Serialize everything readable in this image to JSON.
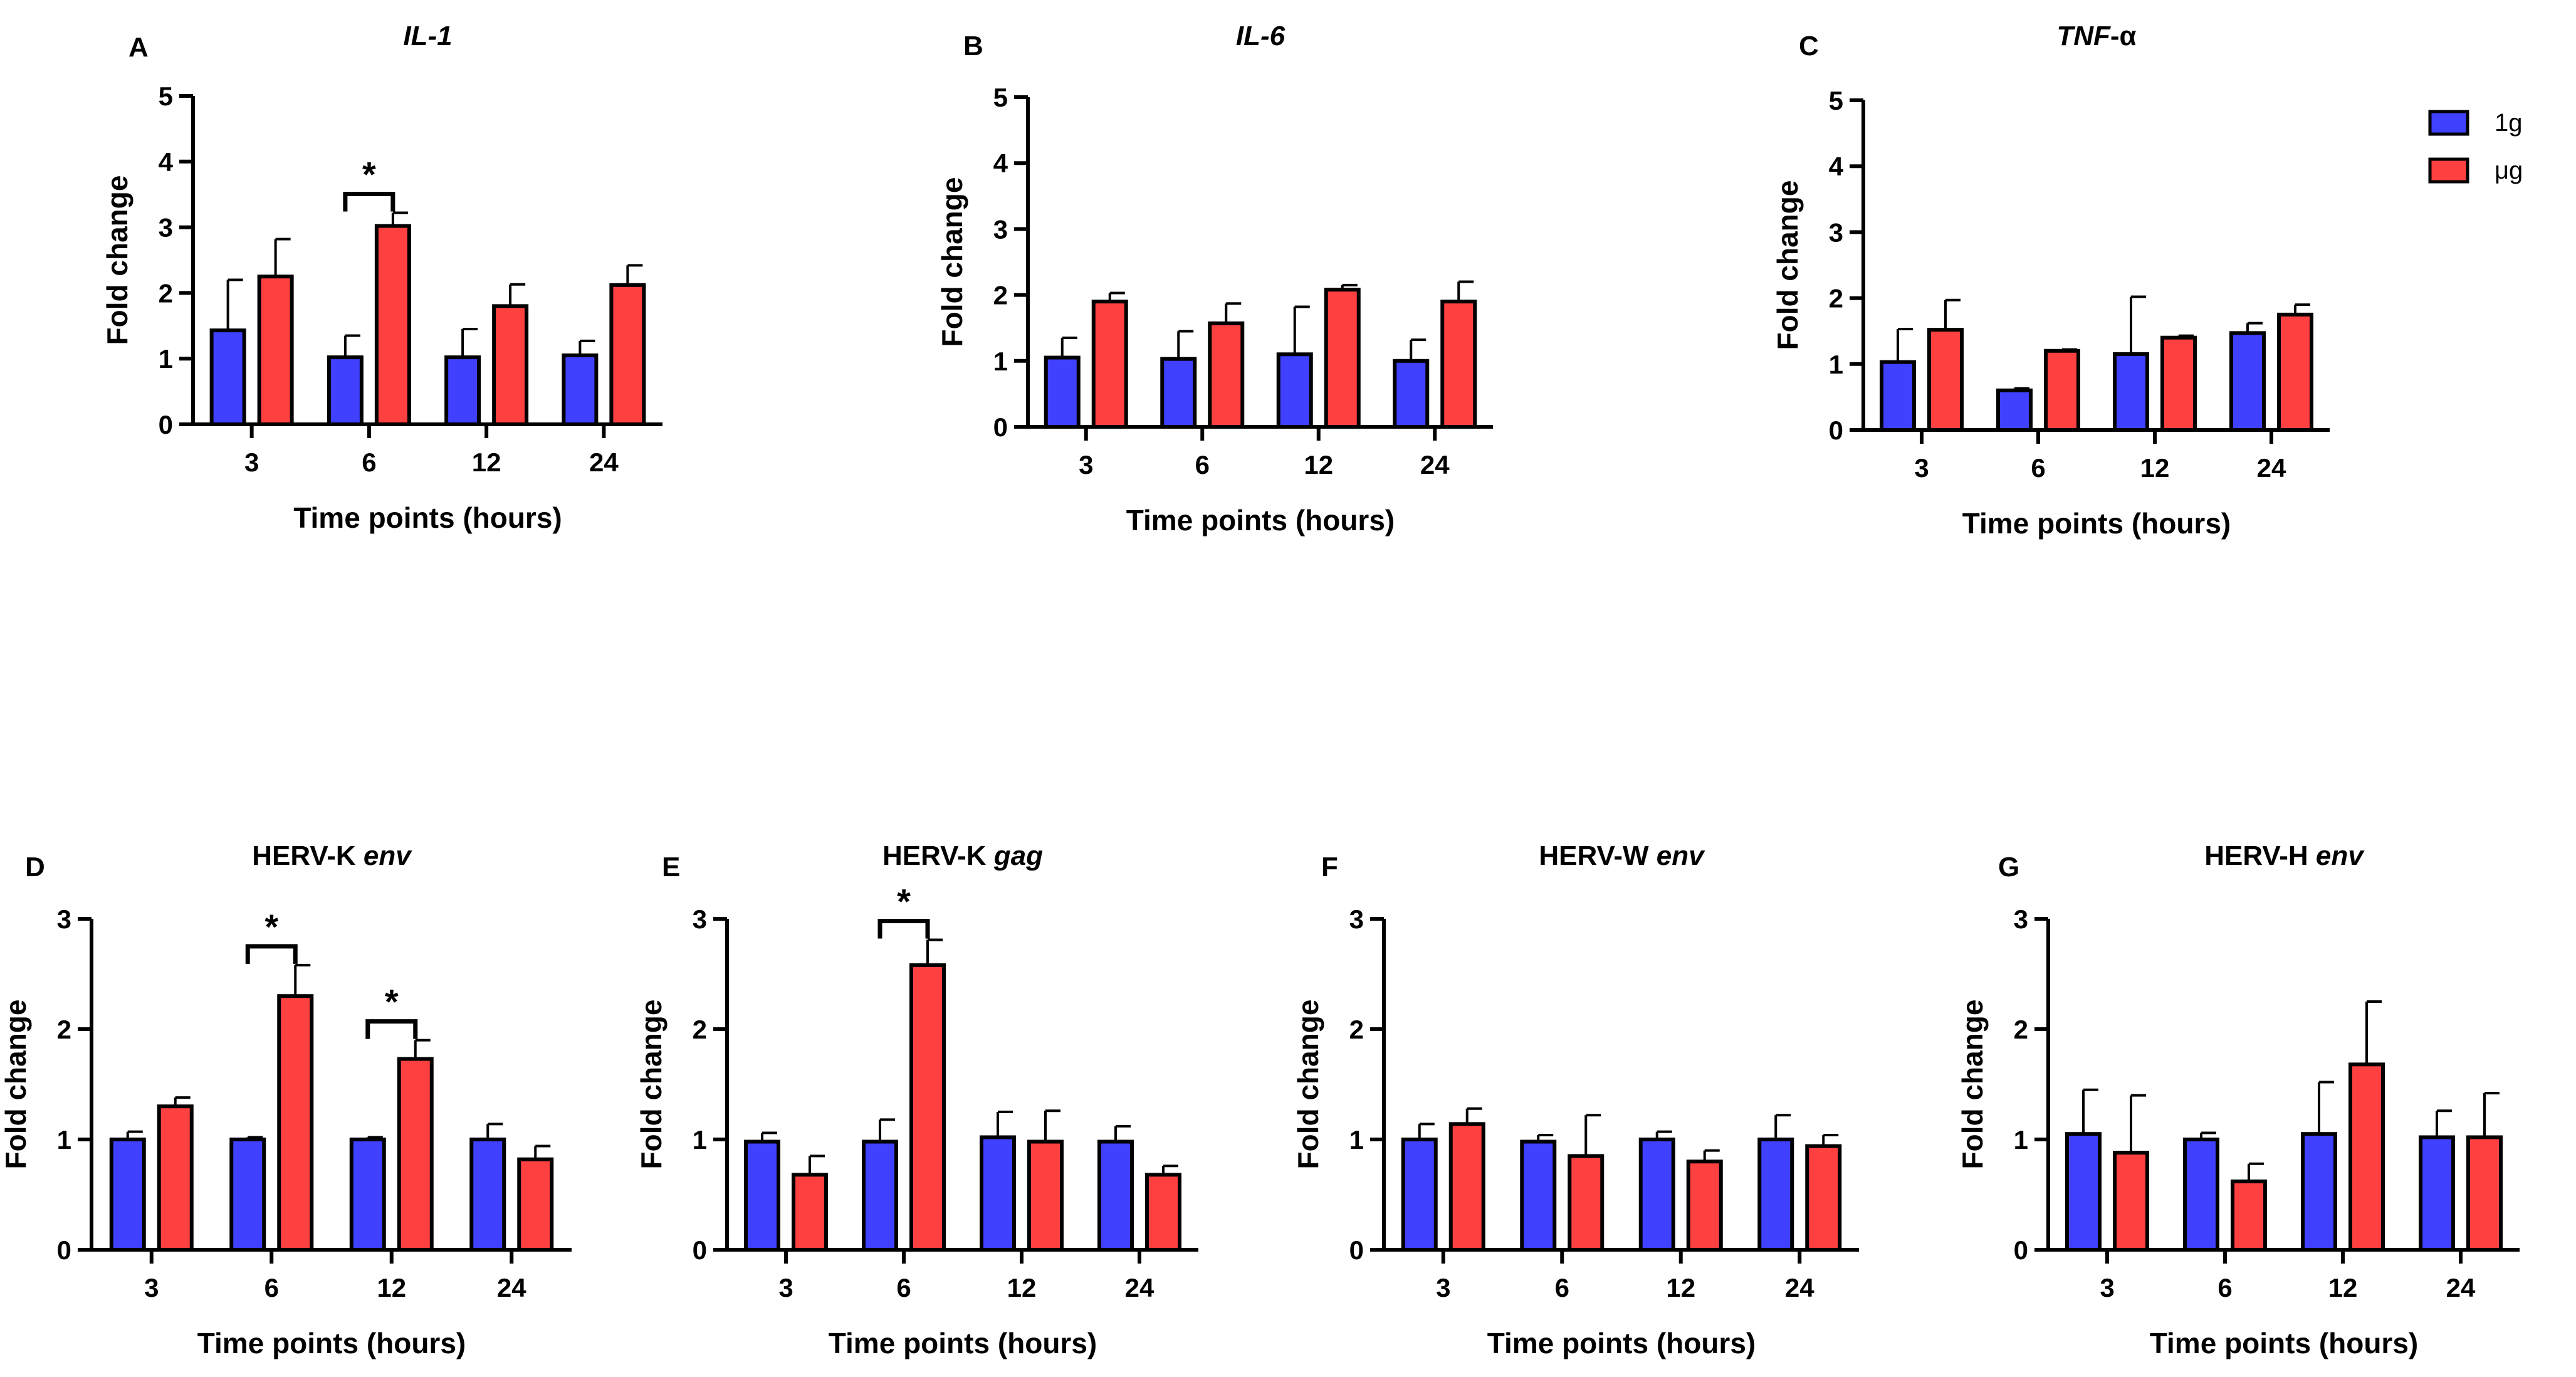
{
  "colors": {
    "series_1g": "#4040ff",
    "series_ug": "#ff4040",
    "axis": "#000000"
  },
  "legend": {
    "items": [
      {
        "label": "1g",
        "color": "#4040ff"
      },
      {
        "label": "μg",
        "color": "#ff4040"
      }
    ]
  },
  "chart_data": [
    {
      "id": "A",
      "panel": "A",
      "type": "bar",
      "title_parts": [
        {
          "text": "IL-1",
          "italic": true
        }
      ],
      "xlabel": "Time points (hours)",
      "ylabel": "Fold change",
      "ylim": [
        0,
        5
      ],
      "yticks": [
        "0",
        "1",
        "2",
        "3",
        "4",
        "5"
      ],
      "categories": [
        "3",
        "6",
        "12",
        "24"
      ],
      "series": [
        {
          "name": "1g",
          "values": [
            1.43,
            1.02,
            1.02,
            1.05
          ],
          "errors": [
            0.77,
            0.33,
            0.43,
            0.22
          ]
        },
        {
          "name": "μg",
          "values": [
            2.25,
            3.02,
            1.8,
            2.12
          ],
          "errors": [
            0.57,
            0.2,
            0.33,
            0.3
          ]
        }
      ],
      "significance": [
        {
          "category_index": 1,
          "label": "*"
        }
      ]
    },
    {
      "id": "B",
      "panel": "B",
      "type": "bar",
      "title_parts": [
        {
          "text": "IL-6",
          "italic": true
        }
      ],
      "xlabel": "Time points (hours)",
      "ylabel": "Fold change",
      "ylim": [
        0,
        5
      ],
      "yticks": [
        "0",
        "1",
        "2",
        "3",
        "4",
        "5"
      ],
      "categories": [
        "3",
        "6",
        "12",
        "24"
      ],
      "series": [
        {
          "name": "1g",
          "values": [
            1.05,
            1.03,
            1.1,
            1.0
          ],
          "errors": [
            0.3,
            0.42,
            0.72,
            0.32
          ]
        },
        {
          "name": "μg",
          "values": [
            1.9,
            1.57,
            2.08,
            1.9
          ],
          "errors": [
            0.13,
            0.3,
            0.07,
            0.3
          ]
        }
      ],
      "significance": []
    },
    {
      "id": "C",
      "panel": "C",
      "type": "bar",
      "title_parts": [
        {
          "text": "TNF",
          "italic": true
        },
        {
          "text": "-α",
          "italic": false
        }
      ],
      "xlabel": "Time points (hours)",
      "ylabel": "Fold change",
      "ylim": [
        0,
        5
      ],
      "yticks": [
        "0",
        "1",
        "2",
        "3",
        "4",
        "5"
      ],
      "categories": [
        "3",
        "6",
        "12",
        "24"
      ],
      "series": [
        {
          "name": "1g",
          "values": [
            1.03,
            0.6,
            1.15,
            1.47
          ],
          "errors": [
            0.5,
            0.03,
            0.87,
            0.15
          ]
        },
        {
          "name": "μg",
          "values": [
            1.52,
            1.2,
            1.4,
            1.75
          ],
          "errors": [
            0.45,
            0.02,
            0.03,
            0.15
          ]
        }
      ],
      "significance": []
    },
    {
      "id": "D",
      "panel": "D",
      "type": "bar",
      "title_parts": [
        {
          "text": "HERV-K ",
          "italic": false
        },
        {
          "text": "env",
          "italic": true
        }
      ],
      "xlabel": "Time points (hours)",
      "ylabel": "Fold change",
      "ylim": [
        0,
        3
      ],
      "yticks": [
        "0",
        "1",
        "2",
        "3"
      ],
      "categories": [
        "3",
        "6",
        "12",
        "24"
      ],
      "series": [
        {
          "name": "1g",
          "values": [
            1.0,
            1.0,
            1.0,
            1.0
          ],
          "errors": [
            0.07,
            0.02,
            0.02,
            0.14
          ]
        },
        {
          "name": "μg",
          "values": [
            1.3,
            2.3,
            1.73,
            0.82
          ],
          "errors": [
            0.08,
            0.28,
            0.17,
            0.12
          ]
        }
      ],
      "significance": [
        {
          "category_index": 1,
          "label": "*"
        },
        {
          "category_index": 2,
          "label": "*"
        }
      ]
    },
    {
      "id": "E",
      "panel": "E",
      "type": "bar",
      "title_parts": [
        {
          "text": "HERV-K ",
          "italic": false
        },
        {
          "text": "gag",
          "italic": true
        }
      ],
      "xlabel": "Time points (hours)",
      "ylabel": "Fold change",
      "ylim": [
        0,
        3
      ],
      "yticks": [
        "0",
        "1",
        "2",
        "3"
      ],
      "categories": [
        "3",
        "6",
        "12",
        "24"
      ],
      "series": [
        {
          "name": "1g",
          "values": [
            0.98,
            0.98,
            1.02,
            0.98
          ],
          "errors": [
            0.08,
            0.2,
            0.23,
            0.14
          ]
        },
        {
          "name": "μg",
          "values": [
            0.68,
            2.58,
            0.98,
            0.68
          ],
          "errors": [
            0.17,
            0.23,
            0.28,
            0.08
          ]
        }
      ],
      "significance": [
        {
          "category_index": 1,
          "label": "*"
        }
      ]
    },
    {
      "id": "F",
      "panel": "F",
      "type": "bar",
      "title_parts": [
        {
          "text": "HERV-W ",
          "italic": false
        },
        {
          "text": "env",
          "italic": true
        }
      ],
      "xlabel": "Time points (hours)",
      "ylabel": "Fold change",
      "ylim": [
        0,
        3
      ],
      "yticks": [
        "0",
        "1",
        "2",
        "3"
      ],
      "categories": [
        "3",
        "6",
        "12",
        "24"
      ],
      "series": [
        {
          "name": "1g",
          "values": [
            1.0,
            0.98,
            1.0,
            1.0
          ],
          "errors": [
            0.14,
            0.06,
            0.07,
            0.22
          ]
        },
        {
          "name": "μg",
          "values": [
            1.14,
            0.85,
            0.8,
            0.94
          ],
          "errors": [
            0.14,
            0.37,
            0.1,
            0.1
          ]
        }
      ],
      "significance": []
    },
    {
      "id": "G",
      "panel": "G",
      "type": "bar",
      "title_parts": [
        {
          "text": "HERV-H ",
          "italic": false
        },
        {
          "text": "env",
          "italic": true
        }
      ],
      "xlabel": "Time points (hours)",
      "ylabel": "Fold change",
      "ylim": [
        0,
        3
      ],
      "yticks": [
        "0",
        "1",
        "2",
        "3"
      ],
      "categories": [
        "3",
        "6",
        "12",
        "24"
      ],
      "series": [
        {
          "name": "1g",
          "values": [
            1.05,
            1.0,
            1.05,
            1.02
          ],
          "errors": [
            0.4,
            0.06,
            0.47,
            0.24
          ]
        },
        {
          "name": "μg",
          "values": [
            0.88,
            0.62,
            1.68,
            1.02
          ],
          "errors": [
            0.52,
            0.16,
            0.57,
            0.4
          ]
        }
      ],
      "significance": []
    }
  ]
}
